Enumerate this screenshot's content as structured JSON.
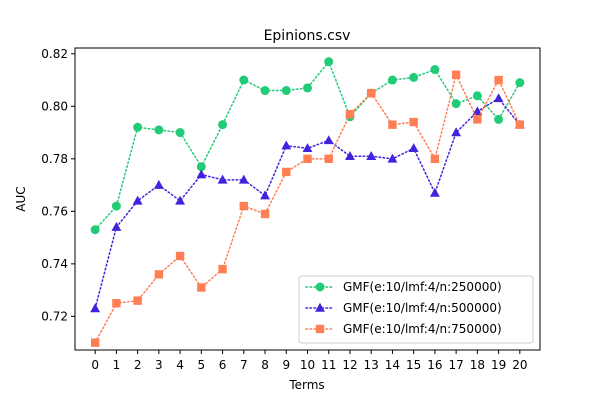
{
  "chart_data": {
    "type": "line",
    "title": "Epinions.csv",
    "xlabel": "Terms",
    "ylabel": "AUC",
    "x": [
      0,
      1,
      2,
      3,
      4,
      5,
      6,
      7,
      8,
      9,
      10,
      11,
      12,
      13,
      14,
      15,
      16,
      17,
      18,
      19,
      20
    ],
    "xlim": [
      -0.95,
      20.95
    ],
    "ylim": [
      0.7072,
      0.8222
    ],
    "yticks": [
      0.72,
      0.74,
      0.76,
      0.78,
      0.8,
      0.82
    ],
    "ytick_labels": [
      "0.72",
      "0.74",
      "0.76",
      "0.78",
      "0.80",
      "0.82"
    ],
    "grid": false,
    "legend_position": "lower-right",
    "series": [
      {
        "name": "GMF(e:10/lmf:4/n:250000)",
        "color": "#22cc77",
        "marker": "circle",
        "line_style": "dotted",
        "values": [
          0.753,
          0.762,
          0.792,
          0.791,
          0.79,
          0.777,
          0.793,
          0.81,
          0.806,
          0.806,
          0.807,
          0.817,
          0.796,
          0.805,
          0.81,
          0.811,
          0.814,
          0.801,
          0.804,
          0.795,
          0.809
        ]
      },
      {
        "name": "GMF(e:10/lmf:4/n:500000)",
        "color": "#4422dd",
        "marker": "triangle",
        "line_style": "dotted",
        "values": [
          0.723,
          0.754,
          0.764,
          0.77,
          0.764,
          0.774,
          0.772,
          0.772,
          0.766,
          0.785,
          0.784,
          0.787,
          0.781,
          0.781,
          0.78,
          0.784,
          0.767,
          0.79,
          0.798,
          0.803,
          0.793
        ]
      },
      {
        "name": "GMF(e:10/lmf:4/n:750000)",
        "color": "#ff7f55",
        "marker": "square",
        "line_style": "dotted",
        "values": [
          0.71,
          0.725,
          0.726,
          0.736,
          0.743,
          0.731,
          0.738,
          0.762,
          0.759,
          0.775,
          0.78,
          0.78,
          0.797,
          0.805,
          0.793,
          0.794,
          0.78,
          0.812,
          0.795,
          0.81,
          0.793
        ]
      }
    ]
  }
}
